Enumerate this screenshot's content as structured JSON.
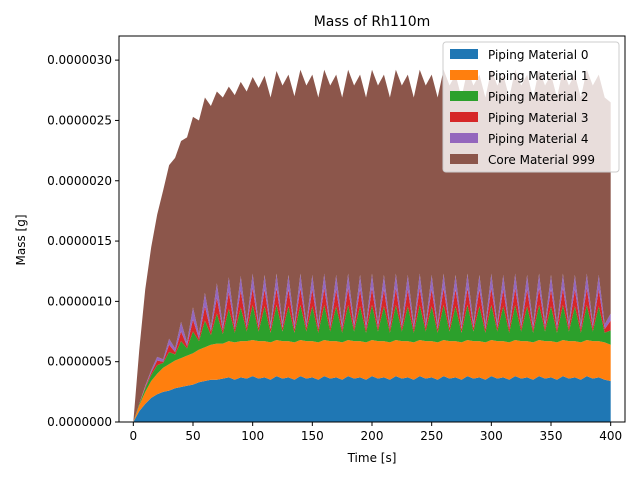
{
  "chart_data": {
    "type": "area",
    "stacked": true,
    "title": "Mass of Rh110m",
    "xlabel": "Time [s]",
    "ylabel": "Mass [g]",
    "xlim": [
      -12,
      412
    ],
    "ylim": [
      0,
      3.2e-06
    ],
    "xticks": [
      0,
      50,
      100,
      150,
      200,
      250,
      300,
      350,
      400
    ],
    "xtick_labels": [
      "0",
      "50",
      "100",
      "150",
      "200",
      "250",
      "300",
      "350",
      "400"
    ],
    "yticks": [
      0,
      5e-07,
      1e-06,
      1.5e-06,
      2e-06,
      2.5e-06,
      3e-06
    ],
    "ytick_labels": [
      "0.0000000",
      "0.0000005",
      "0.0000010",
      "0.0000015",
      "0.0000020",
      "0.0000025",
      "0.0000030"
    ],
    "grid": false,
    "legend_position": "top-right",
    "x": [
      0,
      5,
      10,
      15,
      20,
      25,
      30,
      35,
      40,
      45,
      50,
      55,
      60,
      65,
      70,
      75,
      80,
      85,
      90,
      95,
      100,
      105,
      110,
      115,
      120,
      125,
      130,
      135,
      140,
      145,
      150,
      155,
      160,
      165,
      170,
      175,
      180,
      185,
      190,
      195,
      200,
      205,
      210,
      215,
      220,
      225,
      230,
      235,
      240,
      245,
      250,
      255,
      260,
      265,
      270,
      275,
      280,
      285,
      290,
      295,
      300,
      305,
      310,
      315,
      320,
      325,
      330,
      335,
      340,
      345,
      350,
      355,
      360,
      365,
      370,
      375,
      380,
      385,
      390,
      395,
      400
    ],
    "series": [
      {
        "name": "Piping Material 0",
        "color": "#1f77b4",
        "values": [
          0,
          9e-08,
          1.5e-07,
          2e-07,
          2.3e-07,
          2.5e-07,
          2.6e-07,
          2.8e-07,
          2.9e-07,
          3e-07,
          3.1e-07,
          3.3e-07,
          3.4e-07,
          3.5e-07,
          3.5e-07,
          3.6e-07,
          3.7e-07,
          3.5e-07,
          3.7e-07,
          3.6e-07,
          3.8e-07,
          3.6e-07,
          3.7e-07,
          3.5e-07,
          3.8e-07,
          3.6e-07,
          3.7e-07,
          3.5e-07,
          3.8e-07,
          3.6e-07,
          3.7e-07,
          3.5e-07,
          3.8e-07,
          3.6e-07,
          3.7e-07,
          3.5e-07,
          3.8e-07,
          3.6e-07,
          3.7e-07,
          3.5e-07,
          3.8e-07,
          3.6e-07,
          3.7e-07,
          3.5e-07,
          3.8e-07,
          3.6e-07,
          3.7e-07,
          3.5e-07,
          3.8e-07,
          3.6e-07,
          3.7e-07,
          3.5e-07,
          3.8e-07,
          3.6e-07,
          3.7e-07,
          3.5e-07,
          3.8e-07,
          3.6e-07,
          3.7e-07,
          3.5e-07,
          3.8e-07,
          3.6e-07,
          3.7e-07,
          3.5e-07,
          3.8e-07,
          3.6e-07,
          3.7e-07,
          3.5e-07,
          3.8e-07,
          3.6e-07,
          3.7e-07,
          3.5e-07,
          3.8e-07,
          3.6e-07,
          3.7e-07,
          3.5e-07,
          3.8e-07,
          3.6e-07,
          3.7e-07,
          3.5e-07,
          3.4e-07
        ]
      },
      {
        "name": "Piping Material 1",
        "color": "#ff7f0e",
        "values": [
          0,
          5e-08,
          1e-07,
          1.4e-07,
          1.7e-07,
          2e-07,
          2.2e-07,
          2.3e-07,
          2.4e-07,
          2.5e-07,
          2.6e-07,
          2.7e-07,
          2.8e-07,
          2.9e-07,
          3e-07,
          2.9e-07,
          3e-07,
          3.1e-07,
          3e-07,
          3.1e-07,
          3e-07,
          3.1e-07,
          3e-07,
          3.1e-07,
          3e-07,
          3.1e-07,
          3e-07,
          3.1e-07,
          3e-07,
          3.1e-07,
          3e-07,
          3.1e-07,
          3e-07,
          3.1e-07,
          3e-07,
          3.1e-07,
          3e-07,
          3.1e-07,
          3e-07,
          3.1e-07,
          3e-07,
          3.1e-07,
          3e-07,
          3.1e-07,
          3e-07,
          3.1e-07,
          3e-07,
          3.1e-07,
          3e-07,
          3.1e-07,
          3e-07,
          3.1e-07,
          3e-07,
          3.1e-07,
          3e-07,
          3.1e-07,
          3e-07,
          3.1e-07,
          3e-07,
          3.1e-07,
          3e-07,
          3.1e-07,
          3e-07,
          3.1e-07,
          3e-07,
          3.1e-07,
          3e-07,
          3.1e-07,
          3e-07,
          3.1e-07,
          3e-07,
          3.1e-07,
          3e-07,
          3.1e-07,
          3e-07,
          3.1e-07,
          3e-07,
          3.1e-07,
          3e-07,
          3.1e-07,
          3e-07
        ]
      },
      {
        "name": "Piping Material 2",
        "color": "#2ca02c",
        "values": [
          0,
          1e-08,
          3e-08,
          5e-08,
          7e-08,
          4e-08,
          1e-07,
          5e-08,
          1.4e-07,
          6e-08,
          1.8e-07,
          7e-08,
          2.2e-07,
          8e-08,
          2.5e-07,
          8e-08,
          2.7e-07,
          8e-08,
          2.8e-07,
          8e-08,
          2.9e-07,
          8e-08,
          2.9e-07,
          8e-08,
          2.9e-07,
          8e-08,
          2.9e-07,
          8e-08,
          2.9e-07,
          8e-08,
          2.9e-07,
          8e-08,
          2.9e-07,
          8e-08,
          2.9e-07,
          8e-08,
          2.9e-07,
          8e-08,
          2.9e-07,
          8e-08,
          2.9e-07,
          8e-08,
          2.9e-07,
          8e-08,
          2.9e-07,
          8e-08,
          2.9e-07,
          8e-08,
          2.9e-07,
          8e-08,
          2.9e-07,
          8e-08,
          2.9e-07,
          8e-08,
          2.9e-07,
          8e-08,
          2.9e-07,
          8e-08,
          2.9e-07,
          8e-08,
          2.9e-07,
          8e-08,
          2.9e-07,
          8e-08,
          2.9e-07,
          8e-08,
          2.9e-07,
          8e-08,
          2.9e-07,
          8e-08,
          2.9e-07,
          8e-08,
          2.9e-07,
          8e-08,
          2.9e-07,
          8e-08,
          2.9e-07,
          8e-08,
          2.9e-07,
          8e-08,
          1.2e-07
        ]
      },
      {
        "name": "Piping Material 3",
        "color": "#d62728",
        "values": [
          0,
          0,
          1e-08,
          2e-08,
          4e-08,
          1e-08,
          6e-08,
          2e-08,
          8e-08,
          2e-08,
          1e-07,
          2e-08,
          1.2e-07,
          3e-08,
          1.3e-07,
          3e-08,
          1.4e-07,
          3e-08,
          1.4e-07,
          3e-08,
          1.4e-07,
          3e-08,
          1.4e-07,
          3e-08,
          1.4e-07,
          3e-08,
          1.4e-07,
          3e-08,
          1.4e-07,
          3e-08,
          1.4e-07,
          3e-08,
          1.4e-07,
          3e-08,
          1.4e-07,
          3e-08,
          1.4e-07,
          3e-08,
          1.4e-07,
          3e-08,
          1.4e-07,
          3e-08,
          1.4e-07,
          3e-08,
          1.4e-07,
          3e-08,
          1.4e-07,
          3e-08,
          1.4e-07,
          3e-08,
          1.4e-07,
          3e-08,
          1.4e-07,
          3e-08,
          1.4e-07,
          3e-08,
          1.4e-07,
          3e-08,
          1.4e-07,
          3e-08,
          1.4e-07,
          3e-08,
          1.4e-07,
          3e-08,
          1.4e-07,
          3e-08,
          1.4e-07,
          3e-08,
          1.4e-07,
          3e-08,
          1.4e-07,
          3e-08,
          1.4e-07,
          3e-08,
          1.4e-07,
          3e-08,
          1.4e-07,
          3e-08,
          1.4e-07,
          3e-08,
          8e-08
        ]
      },
      {
        "name": "Piping Material 4",
        "color": "#9467bd",
        "values": [
          0,
          0,
          1e-08,
          2e-08,
          3e-08,
          2e-08,
          5e-08,
          3e-08,
          8e-08,
          3e-08,
          1e-07,
          4e-08,
          1.1e-07,
          4e-08,
          1.2e-07,
          4e-08,
          1.2e-07,
          4e-08,
          1.2e-07,
          4e-08,
          1.2e-07,
          4e-08,
          1.2e-07,
          4e-08,
          1.2e-07,
          4e-08,
          1.2e-07,
          4e-08,
          1.2e-07,
          4e-08,
          1.2e-07,
          4e-08,
          1.2e-07,
          4e-08,
          1.2e-07,
          4e-08,
          1.2e-07,
          4e-08,
          1.2e-07,
          4e-08,
          1.2e-07,
          4e-08,
          1.2e-07,
          4e-08,
          1.2e-07,
          4e-08,
          1.2e-07,
          4e-08,
          1.2e-07,
          4e-08,
          1.2e-07,
          4e-08,
          1.2e-07,
          4e-08,
          1.2e-07,
          4e-08,
          1.2e-07,
          4e-08,
          1.2e-07,
          4e-08,
          1.2e-07,
          4e-08,
          1.2e-07,
          4e-08,
          1.2e-07,
          4e-08,
          1.2e-07,
          4e-08,
          1.2e-07,
          4e-08,
          1.2e-07,
          4e-08,
          1.2e-07,
          4e-08,
          1.2e-07,
          4e-08,
          1.2e-07,
          4e-08,
          1.2e-07,
          4e-08,
          6e-08
        ]
      },
      {
        "name": "Core Material 999",
        "color": "#8c564b",
        "values": [
          0,
          4.5e-07,
          8e-07,
          1.02e-06,
          1.18e-06,
          1.4e-06,
          1.44e-06,
          1.58e-06,
          1.5e-06,
          1.7e-06,
          1.58e-06,
          1.77e-06,
          1.62e-06,
          1.83e-06,
          1.59e-06,
          1.89e-06,
          1.58e-06,
          1.9e-06,
          1.61e-06,
          1.92e-06,
          1.63e-06,
          1.95e-06,
          1.65e-06,
          1.88e-06,
          1.68e-06,
          1.97e-06,
          1.66e-06,
          1.89e-06,
          1.69e-06,
          1.97e-06,
          1.66e-06,
          1.88e-06,
          1.69e-06,
          1.97e-06,
          1.66e-06,
          1.88e-06,
          1.69e-06,
          1.97e-06,
          1.66e-06,
          1.88e-06,
          1.69e-06,
          1.97e-06,
          1.66e-06,
          1.88e-06,
          1.69e-06,
          1.97e-06,
          1.66e-06,
          1.88e-06,
          1.69e-06,
          1.97e-06,
          1.66e-06,
          1.88e-06,
          1.69e-06,
          1.97e-06,
          1.66e-06,
          1.88e-06,
          1.69e-06,
          1.97e-06,
          1.66e-06,
          1.88e-06,
          1.69e-06,
          1.97e-06,
          1.66e-06,
          1.88e-06,
          1.69e-06,
          1.97e-06,
          1.66e-06,
          1.88e-06,
          1.69e-06,
          1.97e-06,
          1.66e-06,
          1.88e-06,
          1.69e-06,
          1.97e-06,
          1.66e-06,
          1.88e-06,
          1.69e-06,
          1.97e-06,
          1.66e-06,
          1.88e-06,
          1.75e-06
        ]
      }
    ]
  }
}
